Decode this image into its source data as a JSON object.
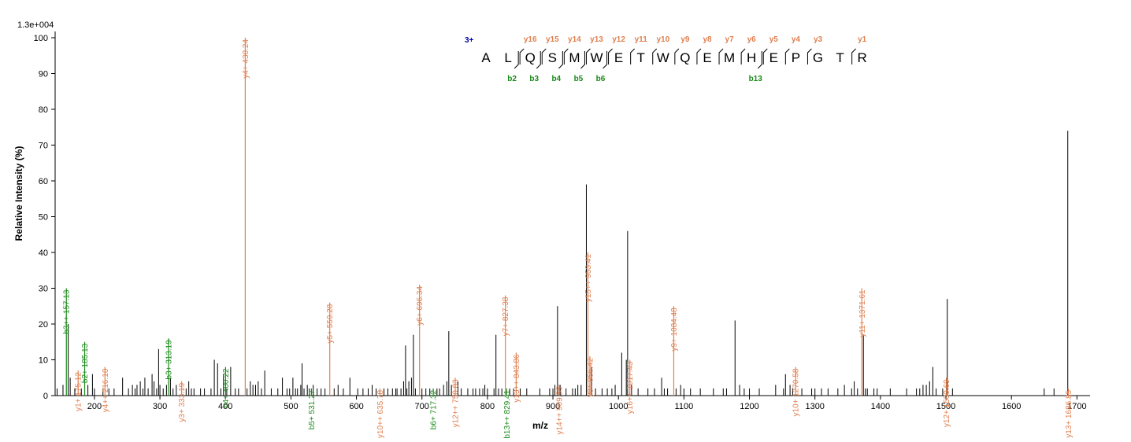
{
  "scale_label": "1.3e+004",
  "ylabel": "Relative  Intensity (%)",
  "xlabel": "m/z",
  "colors": {
    "y_ion": "#e08050",
    "b_ion": "#1a8a1a",
    "other": "#000000",
    "charge": "#0000aa"
  },
  "chart_data": {
    "type": "bar",
    "xlim": [
      140,
      1720
    ],
    "ylim": [
      0,
      100
    ],
    "x_ticks": [
      200,
      300,
      400,
      500,
      600,
      700,
      800,
      900,
      1000,
      1100,
      1200,
      1300,
      1400,
      1500,
      1600,
      1700
    ],
    "y_ticks": [
      0,
      10,
      20,
      30,
      40,
      50,
      60,
      70,
      80,
      90,
      100
    ],
    "grid": false,
    "annotated_peaks": [
      {
        "mz": 157.13,
        "intensity": 30,
        "ion": "b",
        "label": "b3++ 157.13"
      },
      {
        "mz": 175.12,
        "intensity": 7,
        "ion": "y",
        "label": "y1+ 175.12"
      },
      {
        "mz": 185.13,
        "intensity": 15,
        "ion": "b",
        "label": "b2+ 185.13"
      },
      {
        "mz": 216.1,
        "intensity": 8,
        "ion": "y",
        "label": "y4++ 216.10"
      },
      {
        "mz": 313.19,
        "intensity": 16,
        "ion": "b",
        "label": "b3+ 313.19"
      },
      {
        "mz": 333.19,
        "intensity": 4,
        "ion": "y",
        "label": "y3+ 333.19"
      },
      {
        "mz": 400.22,
        "intensity": 8,
        "ion": "b",
        "label": "b4+ 400.22"
      },
      {
        "mz": 430.24,
        "intensity": 100,
        "ion": "y",
        "label": "y4+ 430.24"
      },
      {
        "mz": 531.27,
        "intensity": 2,
        "ion": "b",
        "label": "b5+ 531.27"
      },
      {
        "mz": 559.28,
        "intensity": 26,
        "ion": "y",
        "label": "y5+ 559.28"
      },
      {
        "mz": 635.78,
        "intensity": 2,
        "ion": "y",
        "label": "y10++ 635.78"
      },
      {
        "mz": 696.34,
        "intensity": 31,
        "ion": "y",
        "label": "y6+ 696.34"
      },
      {
        "mz": 717.32,
        "intensity": 2,
        "ion": "b",
        "label": "b6+ 717.32"
      },
      {
        "mz": 750.83,
        "intensity": 5,
        "ion": "y",
        "label": "y12++ 750.83"
      },
      {
        "mz": 827.38,
        "intensity": 28,
        "ion": "y",
        "label": "y7+ 827.38"
      },
      {
        "mz": 829.41,
        "intensity": 2,
        "ion": "b",
        "label": "b13++ 829.41"
      },
      {
        "mz": 843.86,
        "intensity": 12,
        "ion": "y",
        "label": "y13++ 843.86"
      },
      {
        "mz": 909.55,
        "intensity": 3,
        "ion": "y",
        "label": "y14++ 909.55"
      },
      {
        "mz": 953.41,
        "intensity": 40,
        "ion": "y",
        "label": "y15++ 953.41"
      },
      {
        "mz": 956.42,
        "intensity": 11,
        "ion": "y",
        "label": "y8+ 956.42"
      },
      {
        "mz": 1017.43,
        "intensity": 10,
        "ion": "y",
        "label": "y16++ 1017.43"
      },
      {
        "mz": 1084.48,
        "intensity": 25,
        "ion": "y",
        "label": "y9+ 1084.48"
      },
      {
        "mz": 1270.58,
        "intensity": 8,
        "ion": "y",
        "label": "y10+ 1270.58"
      },
      {
        "mz": 1371.61,
        "intensity": 30,
        "ion": "y",
        "label": "y11+ 1371.61"
      },
      {
        "mz": 1500.69,
        "intensity": 5,
        "ion": "y",
        "label": "y12+ 1500.69"
      },
      {
        "mz": 1686.85,
        "intensity": 2,
        "ion": "y",
        "label": "y13+ 1686.85"
      }
    ],
    "unlabeled_peaks": [
      [
        143,
        2
      ],
      [
        152,
        3
      ],
      [
        160,
        20
      ],
      [
        163,
        5
      ],
      [
        170,
        2
      ],
      [
        180,
        2
      ],
      [
        190,
        3
      ],
      [
        197,
        6
      ],
      [
        200,
        2
      ],
      [
        213,
        2
      ],
      [
        222,
        2
      ],
      [
        230,
        2
      ],
      [
        243,
        5
      ],
      [
        252,
        2
      ],
      [
        258,
        3
      ],
      [
        262,
        2
      ],
      [
        265,
        3
      ],
      [
        270,
        4
      ],
      [
        274,
        2
      ],
      [
        277,
        5
      ],
      [
        282,
        2
      ],
      [
        288,
        6
      ],
      [
        291,
        4
      ],
      [
        295,
        2
      ],
      [
        298,
        13
      ],
      [
        300,
        3
      ],
      [
        305,
        2
      ],
      [
        310,
        3
      ],
      [
        316,
        5
      ],
      [
        320,
        2
      ],
      [
        325,
        3
      ],
      [
        340,
        2
      ],
      [
        344,
        4
      ],
      [
        348,
        2
      ],
      [
        352,
        2
      ],
      [
        362,
        2
      ],
      [
        368,
        2
      ],
      [
        378,
        2
      ],
      [
        383,
        10
      ],
      [
        388,
        9
      ],
      [
        393,
        2
      ],
      [
        397,
        6
      ],
      [
        402,
        2
      ],
      [
        408,
        8
      ],
      [
        415,
        2
      ],
      [
        420,
        2
      ],
      [
        433,
        2
      ],
      [
        438,
        4
      ],
      [
        442,
        3
      ],
      [
        446,
        3
      ],
      [
        450,
        4
      ],
      [
        455,
        2
      ],
      [
        460,
        7
      ],
      [
        470,
        2
      ],
      [
        480,
        2
      ],
      [
        487,
        5
      ],
      [
        494,
        2
      ],
      [
        498,
        2
      ],
      [
        503,
        5
      ],
      [
        507,
        2
      ],
      [
        510,
        2
      ],
      [
        515,
        3
      ],
      [
        517,
        9
      ],
      [
        520,
        2
      ],
      [
        525,
        3
      ],
      [
        528,
        2
      ],
      [
        534,
        3
      ],
      [
        540,
        2
      ],
      [
        546,
        2
      ],
      [
        552,
        2
      ],
      [
        566,
        2
      ],
      [
        572,
        3
      ],
      [
        580,
        2
      ],
      [
        590,
        5
      ],
      [
        602,
        2
      ],
      [
        610,
        2
      ],
      [
        618,
        2
      ],
      [
        624,
        3
      ],
      [
        630,
        2
      ],
      [
        642,
        2
      ],
      [
        648,
        2
      ],
      [
        655,
        2
      ],
      [
        660,
        2
      ],
      [
        662,
        2
      ],
      [
        668,
        2
      ],
      [
        672,
        4
      ],
      [
        675,
        14
      ],
      [
        677,
        2
      ],
      [
        680,
        4
      ],
      [
        684,
        5
      ],
      [
        687,
        17
      ],
      [
        690,
        2
      ],
      [
        700,
        2
      ],
      [
        706,
        2
      ],
      [
        712,
        2
      ],
      [
        723,
        2
      ],
      [
        727,
        2
      ],
      [
        733,
        3
      ],
      [
        738,
        4
      ],
      [
        741,
        18
      ],
      [
        745,
        3
      ],
      [
        755,
        4
      ],
      [
        760,
        2
      ],
      [
        770,
        2
      ],
      [
        778,
        2
      ],
      [
        782,
        2
      ],
      [
        788,
        2
      ],
      [
        793,
        2
      ],
      [
        796,
        3
      ],
      [
        800,
        2
      ],
      [
        810,
        2
      ],
      [
        813,
        17
      ],
      [
        817,
        2
      ],
      [
        822,
        2
      ],
      [
        834,
        2
      ],
      [
        840,
        2
      ],
      [
        850,
        2
      ],
      [
        860,
        2
      ],
      [
        880,
        2
      ],
      [
        895,
        2
      ],
      [
        900,
        2
      ],
      [
        903,
        3
      ],
      [
        907,
        25
      ],
      [
        911,
        3
      ],
      [
        920,
        2
      ],
      [
        930,
        2
      ],
      [
        934,
        2
      ],
      [
        938,
        3
      ],
      [
        943,
        3
      ],
      [
        951,
        59
      ],
      [
        959,
        8
      ],
      [
        965,
        2
      ],
      [
        975,
        2
      ],
      [
        983,
        2
      ],
      [
        990,
        2
      ],
      [
        995,
        3
      ],
      [
        1005,
        12
      ],
      [
        1012,
        10
      ],
      [
        1014,
        46
      ],
      [
        1020,
        3
      ],
      [
        1030,
        2
      ],
      [
        1045,
        2
      ],
      [
        1055,
        2
      ],
      [
        1066,
        5
      ],
      [
        1070,
        2
      ],
      [
        1075,
        2
      ],
      [
        1088,
        2
      ],
      [
        1095,
        3
      ],
      [
        1100,
        2
      ],
      [
        1110,
        2
      ],
      [
        1125,
        2
      ],
      [
        1145,
        2
      ],
      [
        1160,
        2
      ],
      [
        1165,
        2
      ],
      [
        1178,
        21
      ],
      [
        1185,
        3
      ],
      [
        1192,
        2
      ],
      [
        1200,
        2
      ],
      [
        1215,
        2
      ],
      [
        1240,
        3
      ],
      [
        1252,
        2
      ],
      [
        1255,
        6
      ],
      [
        1262,
        3
      ],
      [
        1266,
        2
      ],
      [
        1280,
        2
      ],
      [
        1295,
        2
      ],
      [
        1300,
        2
      ],
      [
        1310,
        2
      ],
      [
        1320,
        2
      ],
      [
        1335,
        2
      ],
      [
        1345,
        3
      ],
      [
        1356,
        2
      ],
      [
        1360,
        4
      ],
      [
        1365,
        2
      ],
      [
        1374,
        17
      ],
      [
        1377,
        2
      ],
      [
        1380,
        2
      ],
      [
        1390,
        2
      ],
      [
        1395,
        2
      ],
      [
        1415,
        2
      ],
      [
        1440,
        2
      ],
      [
        1455,
        2
      ],
      [
        1460,
        2
      ],
      [
        1465,
        3
      ],
      [
        1470,
        3
      ],
      [
        1475,
        4
      ],
      [
        1480,
        8
      ],
      [
        1485,
        2
      ],
      [
        1495,
        2
      ],
      [
        1502,
        27
      ],
      [
        1510,
        2
      ],
      [
        1650,
        2
      ],
      [
        1665,
        2
      ],
      [
        1686,
        74
      ]
    ]
  },
  "sequence": {
    "charge_label": "3+",
    "residues": [
      "A",
      "L",
      "Q",
      "S",
      "M",
      "W",
      "E",
      "T",
      "W",
      "Q",
      "E",
      "M",
      "H",
      "E",
      "P",
      "G",
      "T",
      "R"
    ],
    "y_ions": [
      {
        "label": "y16",
        "residue_index": 2
      },
      {
        "label": "y15",
        "residue_index": 3
      },
      {
        "label": "y14",
        "residue_index": 4
      },
      {
        "label": "y13",
        "residue_index": 5
      },
      {
        "label": "y12",
        "residue_index": 6
      },
      {
        "label": "y11",
        "residue_index": 7
      },
      {
        "label": "y10",
        "residue_index": 8
      },
      {
        "label": "y9",
        "residue_index": 9
      },
      {
        "label": "y8",
        "residue_index": 10
      },
      {
        "label": "y7",
        "residue_index": 11
      },
      {
        "label": "y6",
        "residue_index": 12
      },
      {
        "label": "y5",
        "residue_index": 13
      },
      {
        "label": "y4",
        "residue_index": 14
      },
      {
        "label": "y3",
        "residue_index": 15
      },
      {
        "label": "y1",
        "residue_index": 17
      }
    ],
    "b_ions": [
      {
        "label": "b2",
        "residue_index": 1
      },
      {
        "label": "b3",
        "residue_index": 2
      },
      {
        "label": "b4",
        "residue_index": 3
      },
      {
        "label": "b5",
        "residue_index": 4
      },
      {
        "label": "b6",
        "residue_index": 5
      },
      {
        "label": "b13",
        "residue_index": 12
      }
    ]
  }
}
